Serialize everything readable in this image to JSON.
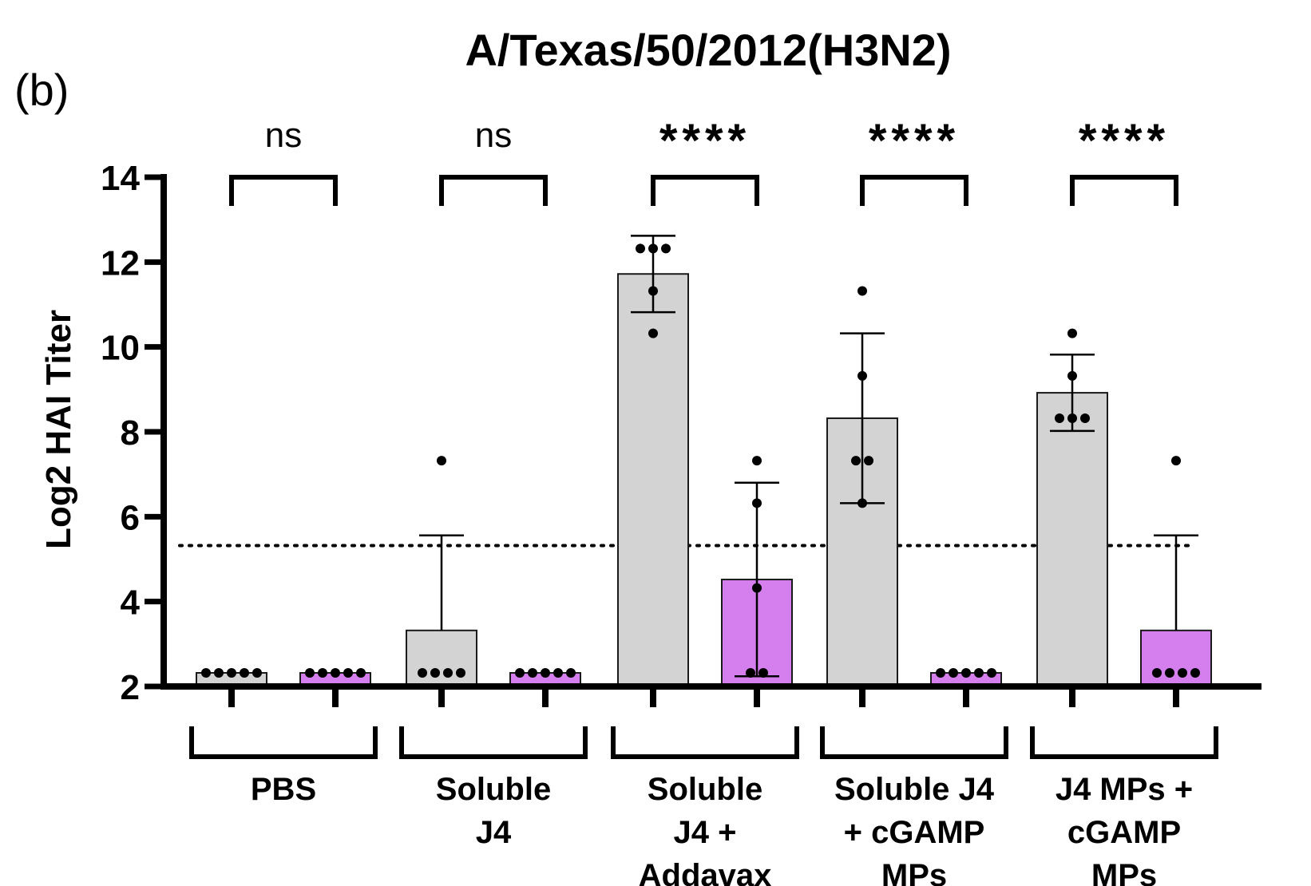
{
  "panel_label": "(b)",
  "chart_data": {
    "type": "bar",
    "title": "A/Texas/50/2012(H3N2)",
    "ylabel": "Log2 HAI Titer",
    "xlabel": "",
    "ylim": [
      2,
      14
    ],
    "yticks": [
      2,
      4,
      6,
      8,
      10,
      12,
      14
    ],
    "threshold": 5.32,
    "colors": {
      "gray": "#d3d3d3",
      "purple": "#d57fee",
      "edge": "#000000"
    },
    "groups": [
      {
        "label_lines": [
          "PBS"
        ],
        "significance": "ns",
        "bars": [
          {
            "color": "gray",
            "mean": 2.32,
            "sd_upper": 2.32,
            "sd_lower": 2.32,
            "points": [
              2.32,
              2.32,
              2.32,
              2.32,
              2.32
            ]
          },
          {
            "color": "purple",
            "mean": 2.32,
            "sd_upper": 2.32,
            "sd_lower": 2.32,
            "points": [
              2.32,
              2.32,
              2.32,
              2.32,
              2.32
            ]
          }
        ]
      },
      {
        "label_lines": [
          "Soluble",
          "J4"
        ],
        "significance": "ns",
        "bars": [
          {
            "color": "gray",
            "mean": 3.32,
            "sd_upper": 5.56,
            "sd_lower": 3.32,
            "points": [
              7.32,
              2.32,
              2.32,
              2.32,
              2.32
            ]
          },
          {
            "color": "purple",
            "mean": 2.32,
            "sd_upper": 2.32,
            "sd_lower": 2.32,
            "points": [
              2.32,
              2.32,
              2.32,
              2.32,
              2.32
            ]
          }
        ]
      },
      {
        "label_lines": [
          "Soluble",
          "J4 +",
          "Addavax"
        ],
        "significance": "****",
        "bars": [
          {
            "color": "gray",
            "mean": 11.72,
            "sd_upper": 12.62,
            "sd_lower": 10.82,
            "points": [
              12.32,
              12.32,
              12.32,
              11.32,
              10.32
            ]
          },
          {
            "color": "purple",
            "mean": 4.52,
            "sd_upper": 6.8,
            "sd_lower": 2.24,
            "points": [
              7.32,
              6.32,
              4.32,
              2.32,
              2.32
            ]
          }
        ]
      },
      {
        "label_lines": [
          "Soluble J4",
          "+ cGAMP",
          "MPs"
        ],
        "significance": "****",
        "bars": [
          {
            "color": "gray",
            "mean": 8.32,
            "sd_upper": 10.32,
            "sd_lower": 6.32,
            "points": [
              11.32,
              9.32,
              7.32,
              7.32,
              6.32
            ]
          },
          {
            "color": "purple",
            "mean": 2.32,
            "sd_upper": 2.32,
            "sd_lower": 2.32,
            "points": [
              2.32,
              2.32,
              2.32,
              2.32,
              2.32
            ]
          }
        ]
      },
      {
        "label_lines": [
          "J4 MPs +",
          "cGAMP",
          "MPs"
        ],
        "significance": "****",
        "bars": [
          {
            "color": "gray",
            "mean": 8.92,
            "sd_upper": 9.82,
            "sd_lower": 8.02,
            "points": [
              10.32,
              9.32,
              8.32,
              8.32,
              8.32
            ]
          },
          {
            "color": "purple",
            "mean": 3.32,
            "sd_upper": 5.56,
            "sd_lower": 3.32,
            "points": [
              7.32,
              2.32,
              2.32,
              2.32,
              2.32
            ]
          }
        ]
      }
    ]
  }
}
